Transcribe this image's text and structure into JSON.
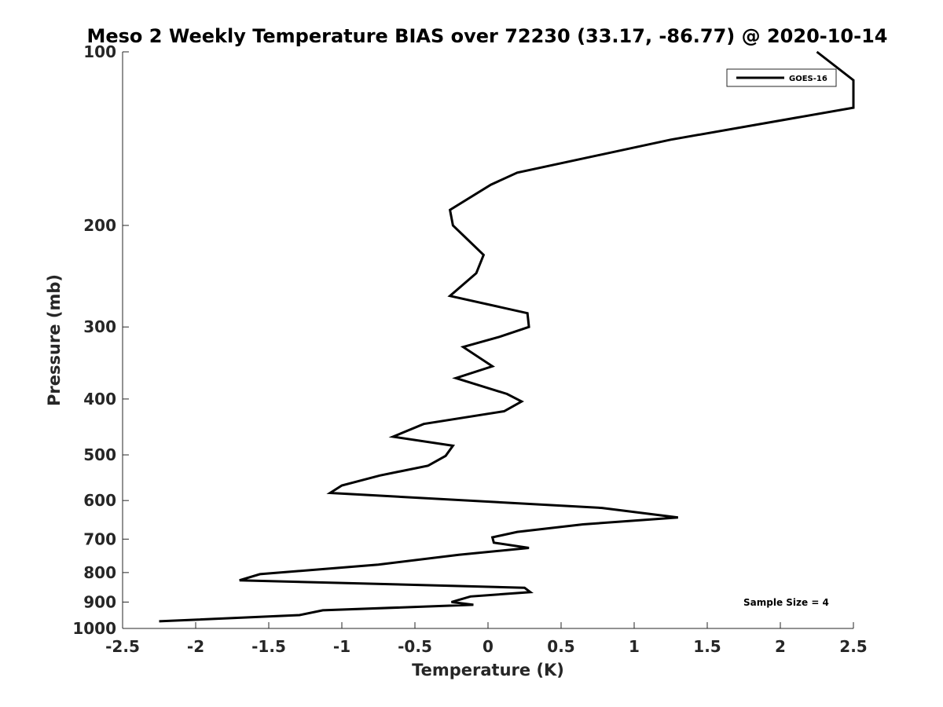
{
  "chart_data": {
    "type": "line",
    "title": "Meso 2 Weekly Temperature BIAS over 72230 (33.17, -86.77) @ 2020-10-14",
    "xlabel": "Temperature (K)",
    "ylabel": "Pressure (mb)",
    "xlim": [
      -2.5,
      2.5
    ],
    "ylim": [
      100,
      1000
    ],
    "y_scale": "log",
    "y_reversed": true,
    "grid": false,
    "x_ticks": [
      -2.5,
      -2,
      -1.5,
      -1,
      -0.5,
      0,
      0.5,
      1,
      1.5,
      2,
      2.5
    ],
    "x_tick_labels": [
      "-2.5",
      "-2",
      "-1.5",
      "-1",
      "-0.5",
      "0",
      "0.5",
      "1",
      "1.5",
      "2",
      "2.5"
    ],
    "y_ticks": [
      100,
      200,
      300,
      400,
      500,
      600,
      700,
      800,
      900,
      1000
    ],
    "y_tick_labels": [
      "100",
      "200",
      "300",
      "400",
      "500",
      "600",
      "700",
      "800",
      "900",
      "1000"
    ],
    "legend": {
      "position": "top-right",
      "entries": [
        "GOES-16"
      ]
    },
    "annotation": "Sample Size = 4",
    "series": [
      {
        "name": "GOES-16",
        "color": "#000000",
        "points": [
          {
            "x": 2.25,
            "y": 100
          },
          {
            "x": 2.5,
            "y": 112
          },
          {
            "x": 2.5,
            "y": 125
          },
          {
            "x": 1.25,
            "y": 142
          },
          {
            "x": 0.2,
            "y": 162
          },
          {
            "x": 0.02,
            "y": 170
          },
          {
            "x": -0.26,
            "y": 188
          },
          {
            "x": -0.24,
            "y": 200
          },
          {
            "x": -0.03,
            "y": 225
          },
          {
            "x": -0.08,
            "y": 242
          },
          {
            "x": -0.26,
            "y": 265
          },
          {
            "x": 0.27,
            "y": 284
          },
          {
            "x": 0.28,
            "y": 300
          },
          {
            "x": 0.08,
            "y": 312
          },
          {
            "x": -0.17,
            "y": 325
          },
          {
            "x": 0.03,
            "y": 351
          },
          {
            "x": -0.22,
            "y": 368
          },
          {
            "x": 0.13,
            "y": 392
          },
          {
            "x": 0.23,
            "y": 404
          },
          {
            "x": 0.11,
            "y": 420
          },
          {
            "x": -0.44,
            "y": 442
          },
          {
            "x": -0.65,
            "y": 465
          },
          {
            "x": -0.24,
            "y": 482
          },
          {
            "x": -0.29,
            "y": 502
          },
          {
            "x": -0.41,
            "y": 522
          },
          {
            "x": -0.74,
            "y": 543
          },
          {
            "x": -1.0,
            "y": 565
          },
          {
            "x": -1.08,
            "y": 582
          },
          {
            "x": 0.78,
            "y": 618
          },
          {
            "x": 1.3,
            "y": 642
          },
          {
            "x": 0.65,
            "y": 660
          },
          {
            "x": 0.2,
            "y": 680
          },
          {
            "x": 0.03,
            "y": 695
          },
          {
            "x": 0.04,
            "y": 710
          },
          {
            "x": 0.28,
            "y": 725
          },
          {
            "x": -0.2,
            "y": 745
          },
          {
            "x": -0.75,
            "y": 775
          },
          {
            "x": -1.56,
            "y": 805
          },
          {
            "x": -1.7,
            "y": 825
          },
          {
            "x": 0.25,
            "y": 850
          },
          {
            "x": 0.29,
            "y": 865
          },
          {
            "x": -0.12,
            "y": 880
          },
          {
            "x": -0.25,
            "y": 900
          },
          {
            "x": -0.1,
            "y": 910
          },
          {
            "x": -1.13,
            "y": 930
          },
          {
            "x": -1.29,
            "y": 948
          },
          {
            "x": -2.25,
            "y": 972
          }
        ]
      }
    ]
  }
}
